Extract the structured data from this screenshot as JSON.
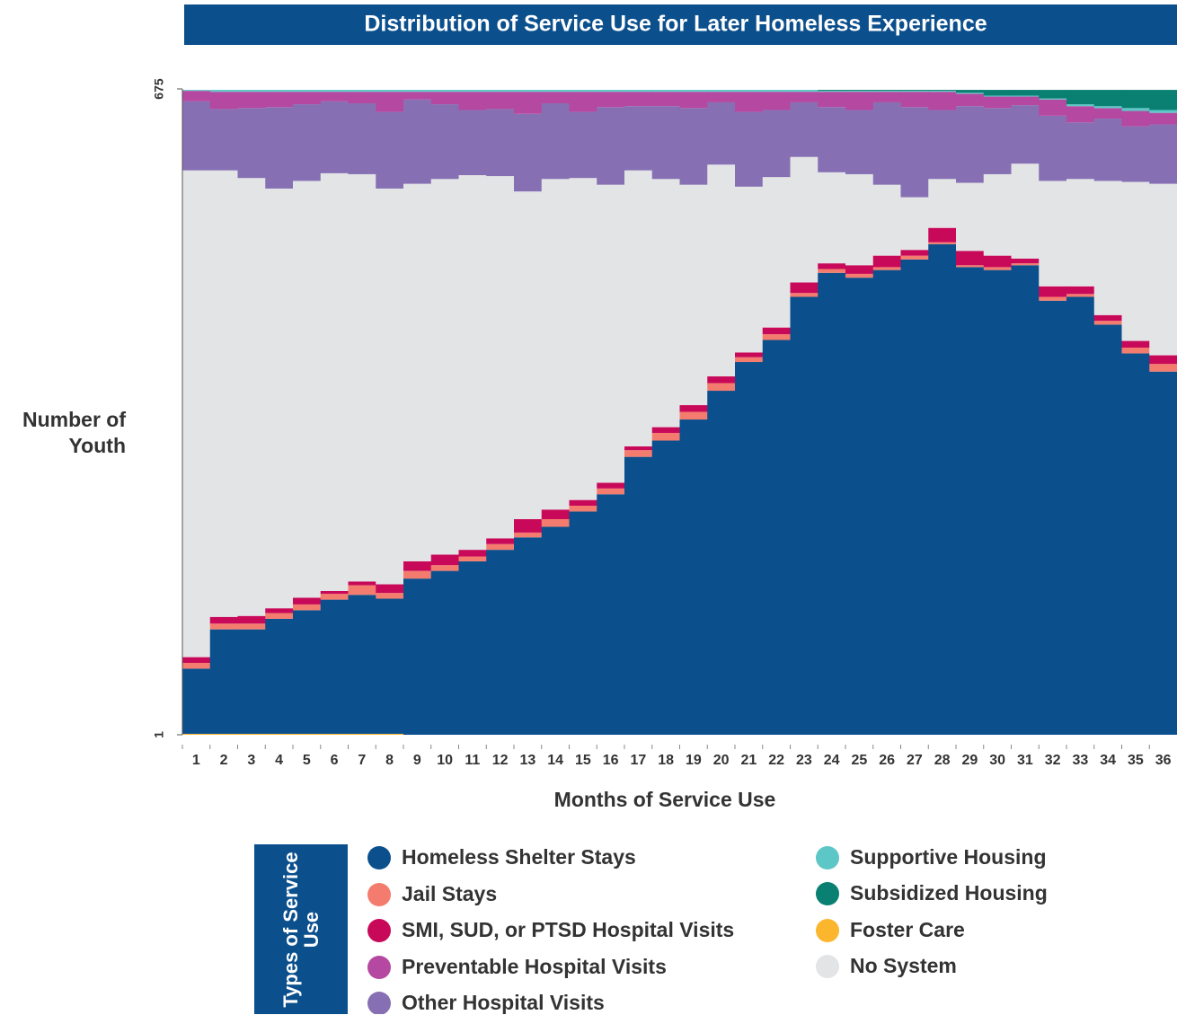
{
  "chart_data": {
    "type": "stacked_step_area",
    "title": "Distribution of Service Use for Later Homeless Experience",
    "x_label": "Months of Service Use",
    "y_label": "Number of Youth",
    "legend_title": "Types of Service Use",
    "categories": [
      "1",
      "2",
      "3",
      "4",
      "5",
      "6",
      "7",
      "8",
      "9",
      "10",
      "11",
      "12",
      "13",
      "14",
      "15",
      "16",
      "17",
      "18",
      "19",
      "20",
      "21",
      "22",
      "23",
      "24",
      "25",
      "26",
      "27",
      "28",
      "29",
      "30",
      "31",
      "32",
      "33",
      "34",
      "35",
      "36"
    ],
    "ylim": [
      1,
      675
    ],
    "yticks": [
      1,
      675
    ],
    "series": [
      {
        "name": "Foster Care",
        "color": "#fbb62e",
        "values": [
          2,
          2,
          2,
          2,
          2,
          2,
          2,
          2,
          1,
          1,
          1,
          1,
          1,
          1,
          1,
          1,
          1,
          1,
          1,
          1,
          1,
          1,
          0,
          0,
          0,
          0,
          0,
          0,
          0,
          0,
          0,
          0,
          0,
          0,
          0,
          0
        ]
      },
      {
        "name": "Homeless Shelter Stays",
        "color": "#0b4f8c",
        "values": [
          68,
          109,
          109,
          120,
          129,
          140,
          145,
          141,
          163,
          171,
          181,
          193,
          206,
          217,
          233,
          251,
          290,
          307,
          329,
          359,
          389,
          412,
          458,
          483,
          478,
          486,
          497,
          513,
          489,
          486,
          491,
          454,
          458,
          429,
          399,
          380
        ]
      },
      {
        "name": "Jail Stays",
        "color": "#f47c6e",
        "values": [
          6,
          6,
          6,
          6,
          6,
          6,
          10,
          6,
          8,
          6,
          5,
          6,
          5,
          8,
          6,
          6,
          7,
          8,
          8,
          8,
          5,
          6,
          4,
          4,
          4,
          3,
          4,
          2,
          2,
          3,
          2,
          4,
          3,
          4,
          6,
          8
        ]
      },
      {
        "name": "SMI, SUD, or PTSD Hospital Visits",
        "color": "#c8095a",
        "values": [
          6,
          7,
          8,
          5,
          7,
          3,
          4,
          9,
          10,
          11,
          7,
          6,
          14,
          10,
          6,
          6,
          4,
          6,
          7,
          7,
          5,
          7,
          11,
          6,
          9,
          12,
          6,
          15,
          15,
          12,
          5,
          11,
          8,
          6,
          7,
          9
        ]
      },
      {
        "name": "No System",
        "color": "#e3e4e6",
        "values": [
          508,
          466,
          457,
          438,
          435,
          436,
          425,
          413,
          394,
          392,
          391,
          378,
          342,
          345,
          336,
          311,
          288,
          259,
          230,
          221,
          173,
          157,
          131,
          95,
          95,
          74,
          55,
          51,
          71,
          85,
          99,
          110,
          112,
          140,
          166,
          179
        ]
      },
      {
        "name": "Other Hospital Visits",
        "color": "#8670b3",
        "values": [
          72,
          64,
          73,
          85,
          80,
          75,
          74,
          80,
          88,
          78,
          68,
          70,
          81,
          79,
          69,
          81,
          67,
          76,
          80,
          65,
          78,
          70,
          57,
          68,
          67,
          86,
          94,
          72,
          80,
          69,
          61,
          68,
          59,
          65,
          58,
          62
        ]
      },
      {
        "name": "Preventable Hospital Visits",
        "color": "#b548a0",
        "values": [
          11,
          18,
          17,
          16,
          13,
          10,
          12,
          21,
          8,
          13,
          19,
          18,
          23,
          12,
          21,
          16,
          15,
          15,
          17,
          11,
          21,
          19,
          11,
          16,
          19,
          11,
          16,
          19,
          13,
          12,
          9,
          17,
          17,
          11,
          16,
          12
        ]
      },
      {
        "name": "Supportive Housing",
        "color": "#5dc6c6",
        "values": [
          1,
          2,
          2,
          2,
          2,
          2,
          2,
          2,
          2,
          2,
          2,
          2,
          2,
          2,
          2,
          2,
          2,
          2,
          2,
          2,
          2,
          2,
          2,
          1,
          1,
          1,
          1,
          1,
          1,
          1,
          1,
          1,
          2,
          2,
          3,
          3
        ]
      },
      {
        "name": "Subsidized Housing",
        "color": "#0a8072",
        "values": [
          0,
          0,
          0,
          0,
          0,
          0,
          0,
          0,
          0,
          0,
          0,
          0,
          0,
          0,
          0,
          0,
          0,
          0,
          0,
          0,
          0,
          0,
          0,
          1,
          1,
          1,
          1,
          1,
          3,
          6,
          6,
          9,
          15,
          17,
          19,
          21
        ]
      }
    ]
  }
}
